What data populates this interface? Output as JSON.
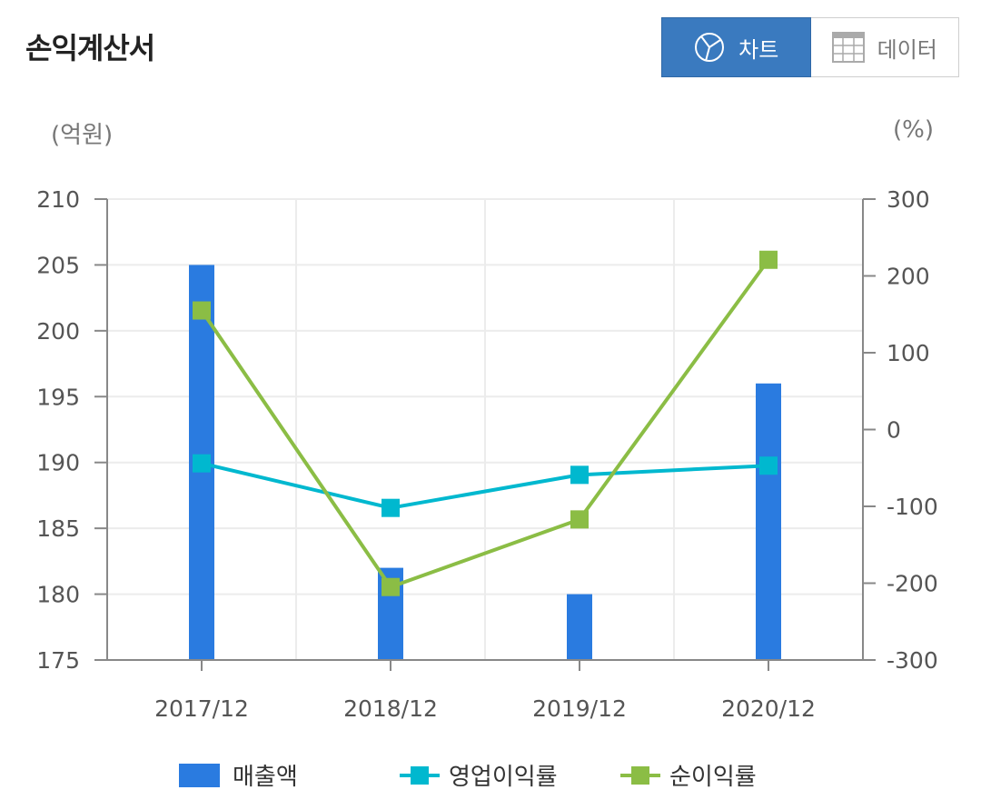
{
  "header": {
    "title": "손익계산서",
    "toggle": {
      "chart_label": "차트",
      "data_label": "데이터"
    },
    "chart_icon": "pie-chart-icon",
    "data_icon": "table-grid-icon"
  },
  "units": {
    "left": "(억원)",
    "right": "(%)"
  },
  "colors": {
    "bar": "#2a7be0",
    "operating": "#00b8cf",
    "net": "#8bbd45",
    "toggle_active": "#3a7abf"
  },
  "chart_data": {
    "type": "bar",
    "title": "",
    "categories": [
      "2017/12",
      "2018/12",
      "2019/12",
      "2020/12"
    ],
    "bars": {
      "name": "매출액",
      "values": [
        205,
        182,
        180,
        196
      ],
      "axis": "left"
    },
    "lines": [
      {
        "name": "영업이익률",
        "values": [
          -44,
          -102,
          -59,
          -47
        ],
        "axis": "right"
      },
      {
        "name": "순이익률",
        "values": [
          155,
          -205,
          -117,
          221
        ],
        "axis": "right"
      }
    ],
    "y_left": {
      "min": 175,
      "max": 210,
      "ticks": [
        "175",
        "180",
        "185",
        "190",
        "195",
        "200",
        "205",
        "210"
      ]
    },
    "y_right": {
      "min": -300,
      "max": 300,
      "ticks": [
        "-300",
        "-200",
        "-100",
        "0",
        "100",
        "200",
        "300"
      ]
    },
    "grid": true,
    "legend_position": "bottom"
  }
}
